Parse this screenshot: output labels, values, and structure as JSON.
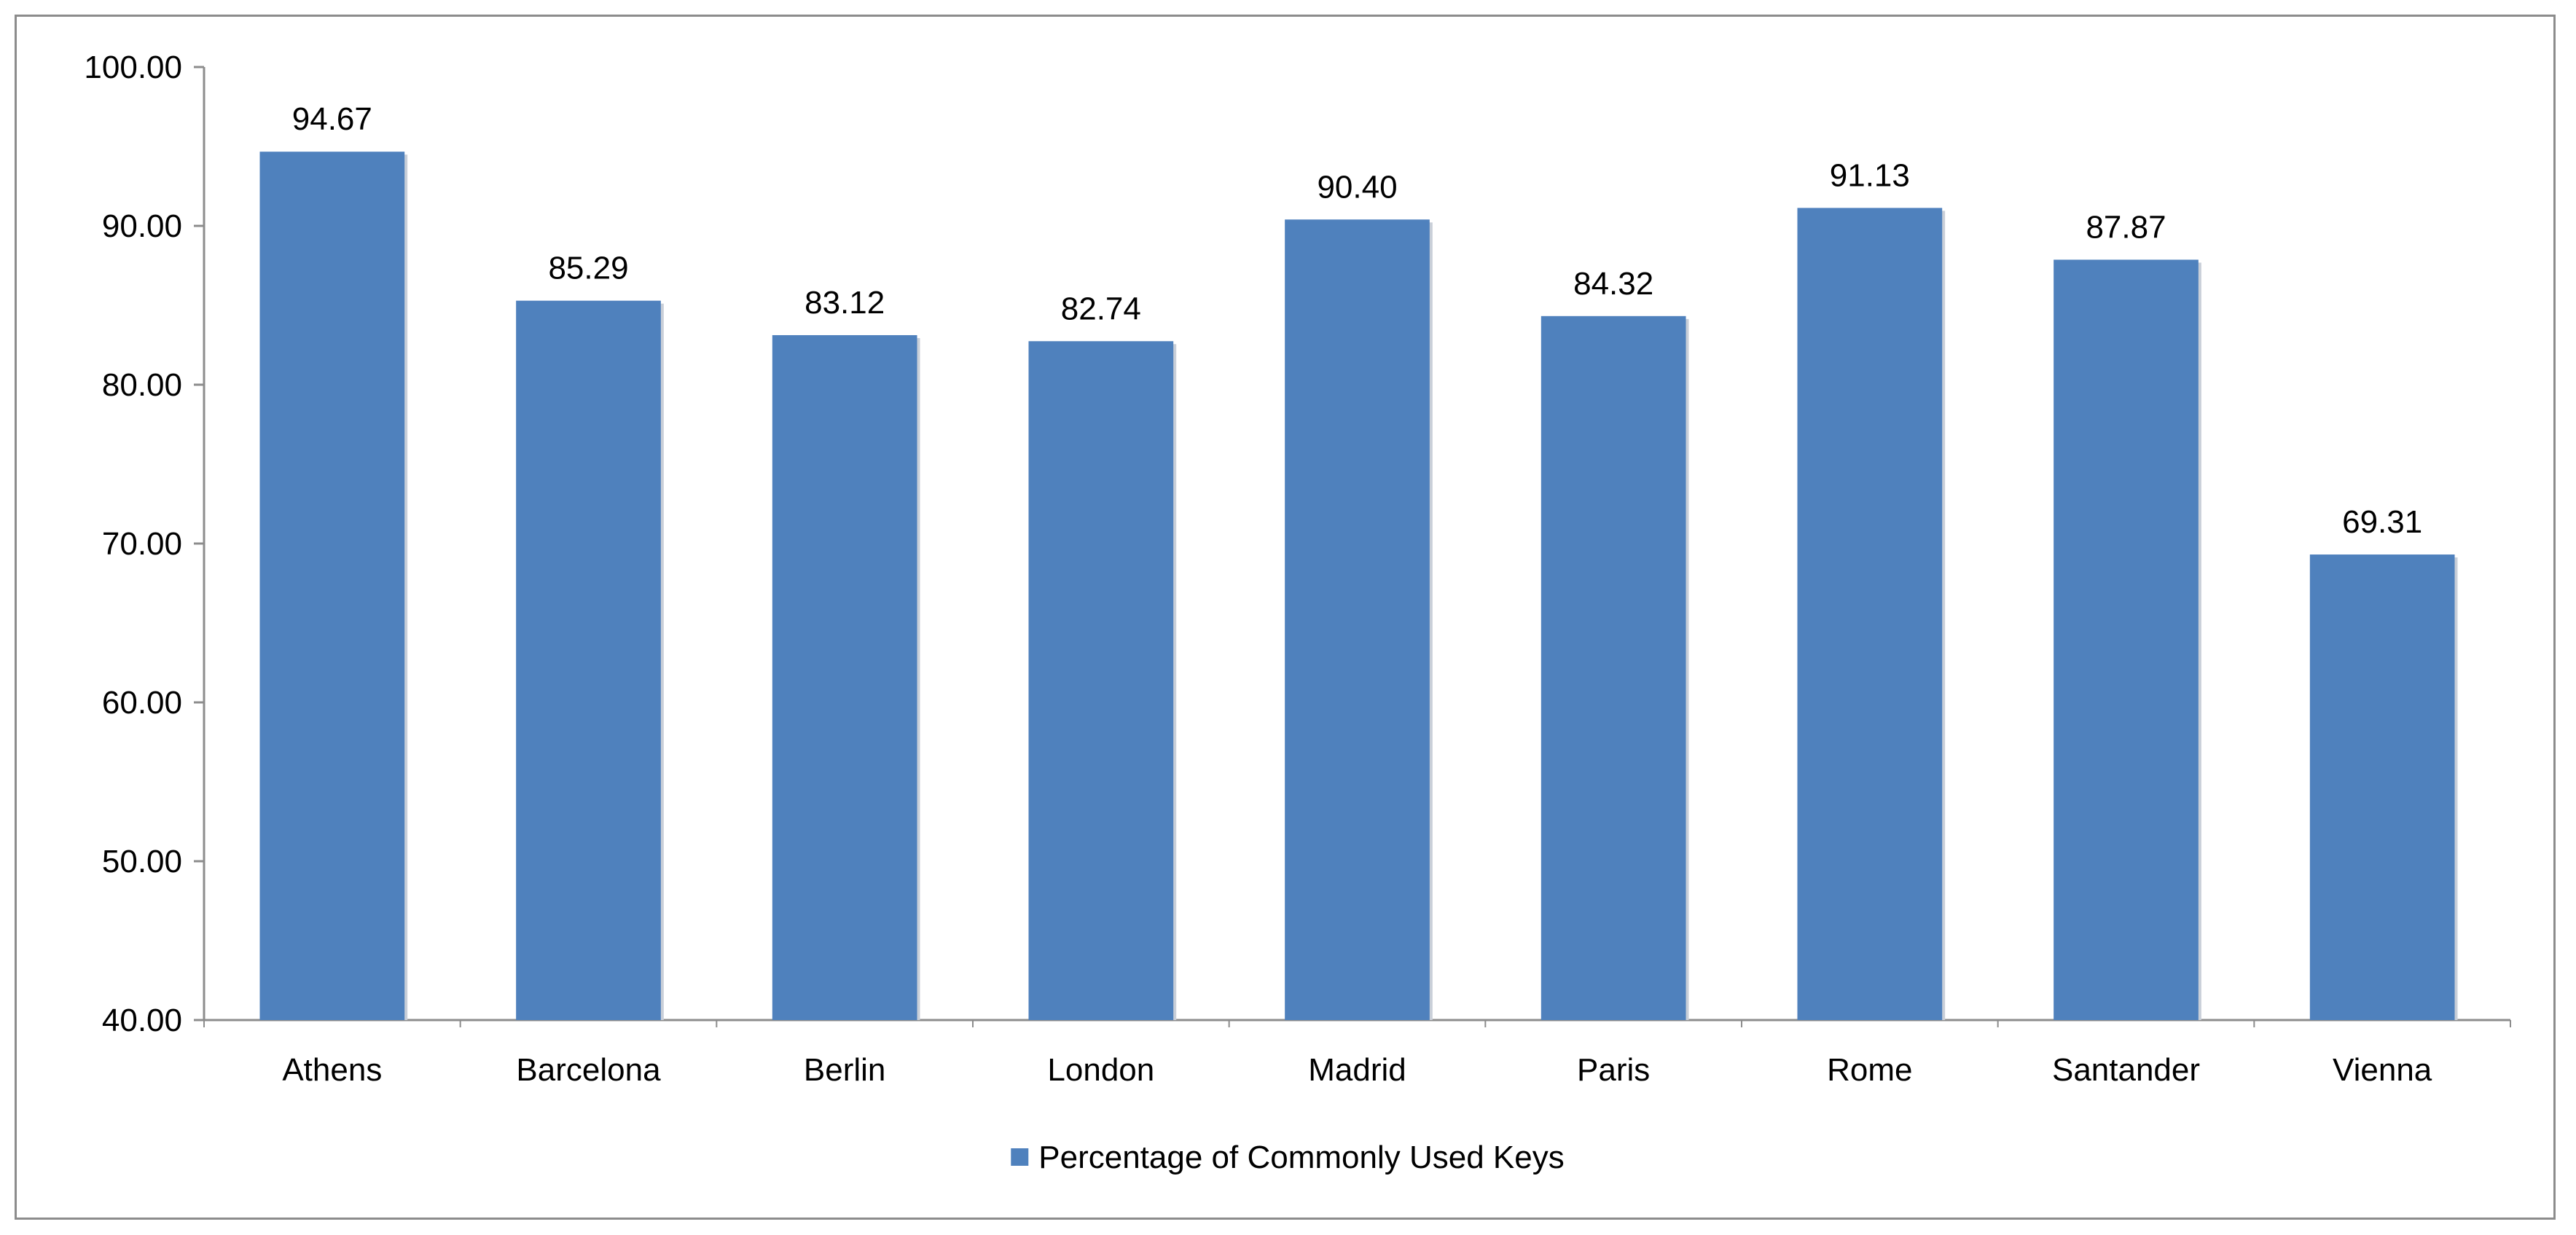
{
  "chart_data": {
    "type": "bar",
    "title": "",
    "xlabel": "",
    "ylabel": "",
    "categories": [
      "Athens",
      "Barcelona",
      "Berlin",
      "London",
      "Madrid",
      "Paris",
      "Rome",
      "Santander",
      "Vienna"
    ],
    "series": [
      {
        "name": "Percentage of Commonly Used Keys",
        "values": [
          94.67,
          85.29,
          83.12,
          82.74,
          90.4,
          84.32,
          91.13,
          87.87,
          69.31
        ],
        "value_labels": [
          "94.67",
          "85.29",
          "83.12",
          "82.74",
          "90.40",
          "84.32",
          "91.13",
          "87.87",
          "69.31"
        ],
        "color": "#4F81BD"
      }
    ],
    "ylim": [
      40,
      100
    ],
    "yticks": [
      40,
      50,
      60,
      70,
      80,
      90,
      100
    ],
    "ytick_labels": [
      "40.00",
      "50.00",
      "60.00",
      "70.00",
      "80.00",
      "90.00",
      "100.00"
    ],
    "grid": false,
    "legend_position": "bottom"
  }
}
